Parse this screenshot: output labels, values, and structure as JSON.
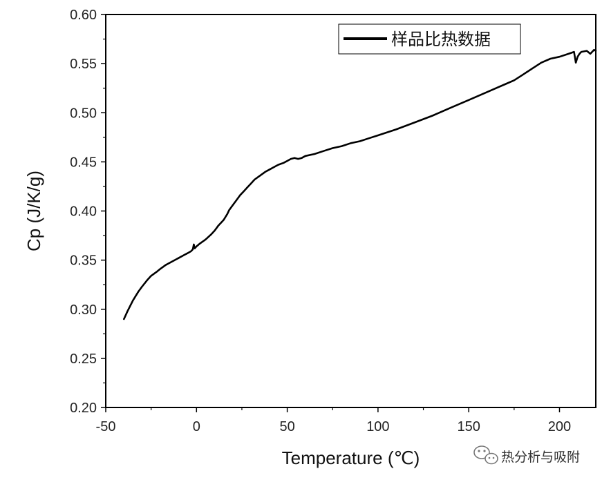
{
  "chart_data": {
    "type": "line",
    "xlabel": "Temperature (℃)",
    "ylabel": "Cp (J/K/g)",
    "xlim": [
      -50,
      220
    ],
    "ylim": [
      0.2,
      0.6
    ],
    "xticks": [
      "-50",
      "0",
      "50",
      "100",
      "150",
      "200"
    ],
    "yticks": [
      "0.20",
      "0.25",
      "0.30",
      "0.35",
      "0.40",
      "0.45",
      "0.50",
      "0.55",
      "0.60"
    ],
    "legend_position": "top-right",
    "series": [
      {
        "name": "样品比热数据",
        "color": "#000000",
        "x": [
          -40,
          -38,
          -35,
          -32,
          -30,
          -27,
          -25,
          -22,
          -20,
          -17,
          -15,
          -12,
          -10,
          -7,
          -5,
          -3,
          -2,
          -1.5,
          -1,
          0,
          2,
          5,
          8,
          10,
          12,
          14,
          15,
          16,
          17,
          18,
          20,
          22,
          24,
          26,
          28,
          30,
          32,
          35,
          38,
          40,
          43,
          45,
          48,
          50,
          52,
          54,
          56,
          58,
          60,
          65,
          70,
          75,
          80,
          85,
          90,
          95,
          100,
          110,
          120,
          130,
          140,
          150,
          160,
          170,
          175,
          180,
          185,
          190,
          195,
          200,
          205,
          208,
          209,
          210,
          211,
          212,
          215,
          217,
          219,
          220
        ],
        "y": [
          0.29,
          0.298,
          0.309,
          0.318,
          0.323,
          0.33,
          0.334,
          0.338,
          0.341,
          0.345,
          0.347,
          0.35,
          0.352,
          0.355,
          0.357,
          0.359,
          0.361,
          0.366,
          0.362,
          0.364,
          0.367,
          0.371,
          0.376,
          0.38,
          0.385,
          0.389,
          0.391,
          0.394,
          0.397,
          0.401,
          0.406,
          0.411,
          0.416,
          0.42,
          0.424,
          0.428,
          0.432,
          0.436,
          0.44,
          0.442,
          0.445,
          0.447,
          0.449,
          0.451,
          0.453,
          0.454,
          0.453,
          0.454,
          0.456,
          0.458,
          0.461,
          0.464,
          0.466,
          0.469,
          0.471,
          0.474,
          0.477,
          0.483,
          0.49,
          0.497,
          0.505,
          0.513,
          0.521,
          0.529,
          0.533,
          0.539,
          0.545,
          0.551,
          0.555,
          0.557,
          0.56,
          0.562,
          0.551,
          0.557,
          0.56,
          0.562,
          0.563,
          0.56,
          0.564,
          0.563
        ]
      }
    ]
  },
  "watermark": {
    "text": "热分析与吸附",
    "icon": "wechat-icon"
  }
}
